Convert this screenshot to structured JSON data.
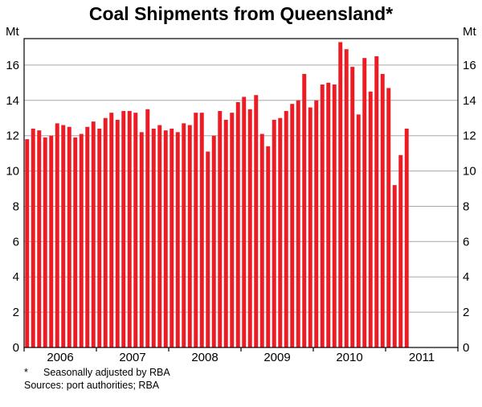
{
  "title": "Coal Shipments from Queensland*",
  "footnotes": {
    "marker": "*",
    "note": "Seasonally adjusted by RBA",
    "sources": "Sources: port authorities; RBA"
  },
  "chart_data": {
    "type": "bar",
    "title": "Coal Shipments from Queensland*",
    "unit_left": "Mt",
    "unit_right": "Mt",
    "ylim": [
      0,
      17.5
    ],
    "yticks": [
      0,
      2,
      4,
      6,
      8,
      10,
      12,
      14,
      16
    ],
    "x_tick_labels": [
      "2006",
      "2007",
      "2008",
      "2009",
      "2010",
      "2011"
    ],
    "axis_months": 72,
    "grid": true,
    "frame": true,
    "legend": "none",
    "bar_color": "#ED1C24",
    "grid_color": "#a8a8a8",
    "frame_color": "#000000",
    "categories": [
      "2006-01",
      "2006-02",
      "2006-03",
      "2006-04",
      "2006-05",
      "2006-06",
      "2006-07",
      "2006-08",
      "2006-09",
      "2006-10",
      "2006-11",
      "2006-12",
      "2007-01",
      "2007-02",
      "2007-03",
      "2007-04",
      "2007-05",
      "2007-06",
      "2007-07",
      "2007-08",
      "2007-09",
      "2007-10",
      "2007-11",
      "2007-12",
      "2008-01",
      "2008-02",
      "2008-03",
      "2008-04",
      "2008-05",
      "2008-06",
      "2008-07",
      "2008-08",
      "2008-09",
      "2008-10",
      "2008-11",
      "2008-12",
      "2009-01",
      "2009-02",
      "2009-03",
      "2009-04",
      "2009-05",
      "2009-06",
      "2009-07",
      "2009-08",
      "2009-09",
      "2009-10",
      "2009-11",
      "2009-12",
      "2010-01",
      "2010-02",
      "2010-03",
      "2010-04",
      "2010-05",
      "2010-06",
      "2010-07",
      "2010-08",
      "2010-09",
      "2010-10",
      "2010-11",
      "2010-12",
      "2011-01",
      "2011-02",
      "2011-03",
      "2011-04"
    ],
    "values": [
      11.8,
      12.4,
      12.3,
      11.9,
      12.0,
      12.7,
      12.6,
      12.5,
      11.9,
      12.1,
      12.5,
      12.8,
      12.4,
      13.0,
      13.3,
      12.9,
      13.4,
      13.4,
      13.3,
      12.2,
      13.5,
      12.4,
      12.6,
      12.3,
      12.4,
      12.2,
      12.7,
      12.6,
      13.3,
      13.3,
      11.1,
      12.0,
      13.4,
      12.9,
      13.3,
      13.9,
      14.2,
      13.5,
      14.3,
      12.1,
      11.4,
      12.9,
      13.0,
      13.4,
      13.8,
      14.0,
      15.5,
      13.6,
      14.0,
      14.9,
      15.0,
      14.9,
      17.3,
      16.9,
      15.9,
      13.2,
      16.4,
      14.5,
      16.5,
      15.5,
      14.7,
      9.2,
      10.9,
      12.4
    ]
  }
}
